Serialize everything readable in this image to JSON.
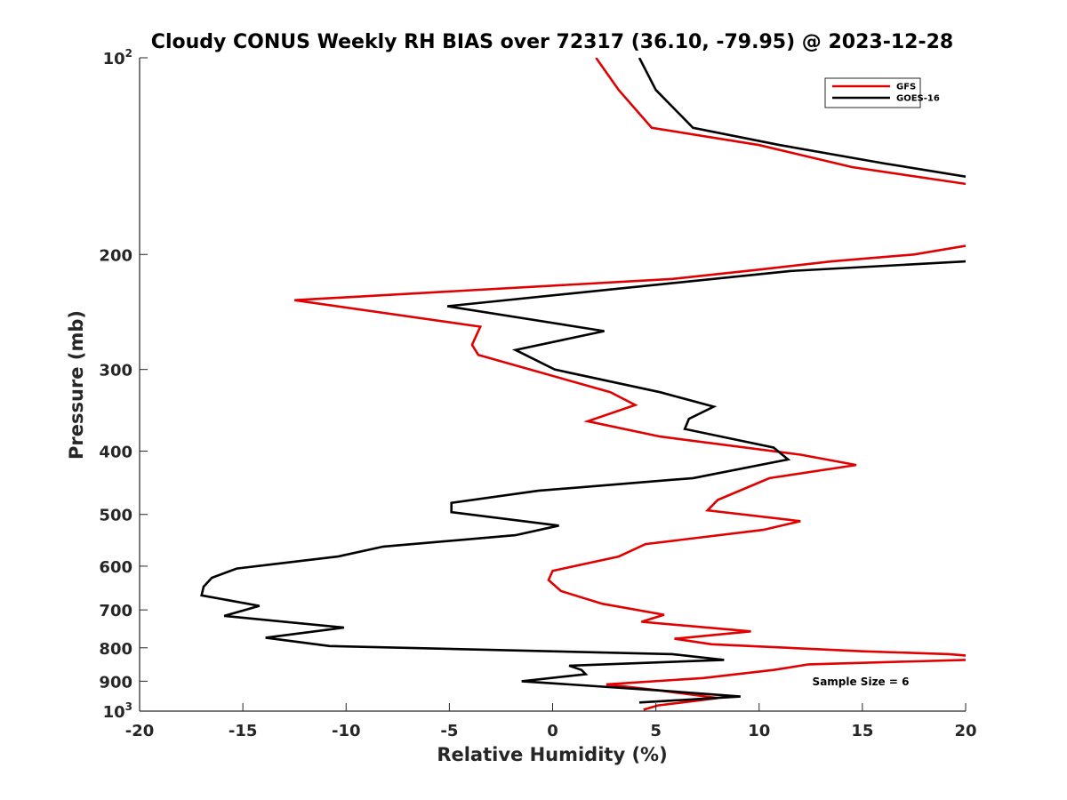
{
  "chart_data": {
    "type": "line",
    "title": "Cloudy CONUS Weekly RH BIAS over 72317 (36.10, -79.95) @ 2023-12-28",
    "xlabel": "Relative Humidity (%)",
    "ylabel": "Pressure (mb)",
    "xlim": [
      -20,
      20
    ],
    "ylim": [
      1000,
      100
    ],
    "y_scale": "log",
    "y_reversed": true,
    "x_ticks": [
      -20,
      -15,
      -10,
      -5,
      0,
      5,
      10,
      15,
      20
    ],
    "x_tick_labels": [
      "-20",
      "-15",
      "-10",
      "-5",
      "0",
      "5",
      "10",
      "15",
      "20"
    ],
    "y_ticks": [
      100,
      200,
      300,
      400,
      500,
      600,
      700,
      800,
      900,
      1000
    ],
    "y_tick_labels": [
      {
        "base": "10",
        "sup": "2"
      },
      {
        "base": "200",
        "sup": ""
      },
      {
        "base": "300",
        "sup": ""
      },
      {
        "base": "400",
        "sup": ""
      },
      {
        "base": "500",
        "sup": ""
      },
      {
        "base": "600",
        "sup": ""
      },
      {
        "base": "700",
        "sup": ""
      },
      {
        "base": "800",
        "sup": ""
      },
      {
        "base": "900",
        "sup": ""
      },
      {
        "base": "10",
        "sup": "3"
      }
    ],
    "grid": false,
    "legend_position": "top-right",
    "annotation": "Sample Size = 6",
    "series": [
      {
        "name": "GFS",
        "color": "#e00000",
        "points": [
          [
            2.1,
            100
          ],
          [
            3.2,
            112
          ],
          [
            4.8,
            128
          ],
          [
            10,
            136
          ],
          [
            14.5,
            147
          ],
          [
            20,
            156
          ],
          [
            null,
            null
          ],
          [
            20,
            194
          ],
          [
            17.5,
            200
          ],
          [
            13.5,
            205
          ],
          [
            10,
            211
          ],
          [
            5.8,
            218
          ],
          [
            -12.5,
            235
          ],
          [
            -3.5,
            258
          ],
          [
            -3.9,
            275
          ],
          [
            -3.6,
            285
          ],
          [
            2.8,
            325
          ],
          [
            4,
            340
          ],
          [
            1.7,
            360
          ],
          [
            5.2,
            380
          ],
          [
            12,
            405
          ],
          [
            14.7,
            420
          ],
          [
            10.5,
            440
          ],
          [
            8,
            475
          ],
          [
            7.5,
            493
          ],
          [
            12,
            512
          ],
          [
            10.2,
            528
          ],
          [
            4.5,
            555
          ],
          [
            3.2,
            580
          ],
          [
            0,
            610
          ],
          [
            -0.2,
            630
          ],
          [
            0.4,
            655
          ],
          [
            2.4,
            685
          ],
          [
            5.4,
            712
          ],
          [
            4.3,
            730
          ],
          [
            9.6,
            755
          ],
          [
            5.9,
            775
          ],
          [
            7.7,
            790
          ],
          [
            15,
            810
          ],
          [
            19.2,
            818
          ],
          [
            20,
            822
          ],
          [
            null,
            null
          ],
          [
            20,
            835
          ],
          [
            12.4,
            848
          ],
          [
            10.7,
            865
          ],
          [
            7.3,
            890
          ],
          [
            2.6,
            910
          ],
          [
            5.2,
            930
          ],
          [
            8,
            955
          ],
          [
            5.1,
            980
          ],
          [
            4.4,
            995
          ]
        ]
      },
      {
        "name": "GOES-16",
        "color": "#000000",
        "points": [
          [
            4.2,
            100
          ],
          [
            5,
            112
          ],
          [
            6.8,
            128
          ],
          [
            11,
            136
          ],
          [
            16,
            145
          ],
          [
            20,
            152
          ],
          [
            null,
            null
          ],
          [
            20,
            205
          ],
          [
            11.5,
            212
          ],
          [
            -5.1,
            240
          ],
          [
            2.5,
            262
          ],
          [
            -1.8,
            280
          ],
          [
            0.1,
            300
          ],
          [
            5.2,
            325
          ],
          [
            7.8,
            342
          ],
          [
            6.6,
            357
          ],
          [
            6.4,
            370
          ],
          [
            10.7,
            395
          ],
          [
            11.4,
            412
          ],
          [
            6.8,
            440
          ],
          [
            -0.7,
            460
          ],
          [
            -4.9,
            480
          ],
          [
            -4.9,
            496
          ],
          [
            0.3,
            520
          ],
          [
            -1.8,
            538
          ],
          [
            -8.2,
            560
          ],
          [
            -10.4,
            580
          ],
          [
            -15.3,
            605
          ],
          [
            -16.5,
            625
          ],
          [
            -16.9,
            645
          ],
          [
            -17,
            665
          ],
          [
            -14.2,
            690
          ],
          [
            -15.9,
            715
          ],
          [
            -10.1,
            745
          ],
          [
            -13.9,
            772
          ],
          [
            -10.8,
            795
          ],
          [
            5.8,
            818
          ],
          [
            8.3,
            835
          ],
          [
            0.8,
            852
          ],
          [
            1.4,
            865
          ],
          [
            1.6,
            878
          ],
          [
            -1.5,
            900
          ],
          [
            5.2,
            930
          ],
          [
            9.1,
            950
          ],
          [
            4.2,
            970
          ]
        ]
      }
    ]
  }
}
